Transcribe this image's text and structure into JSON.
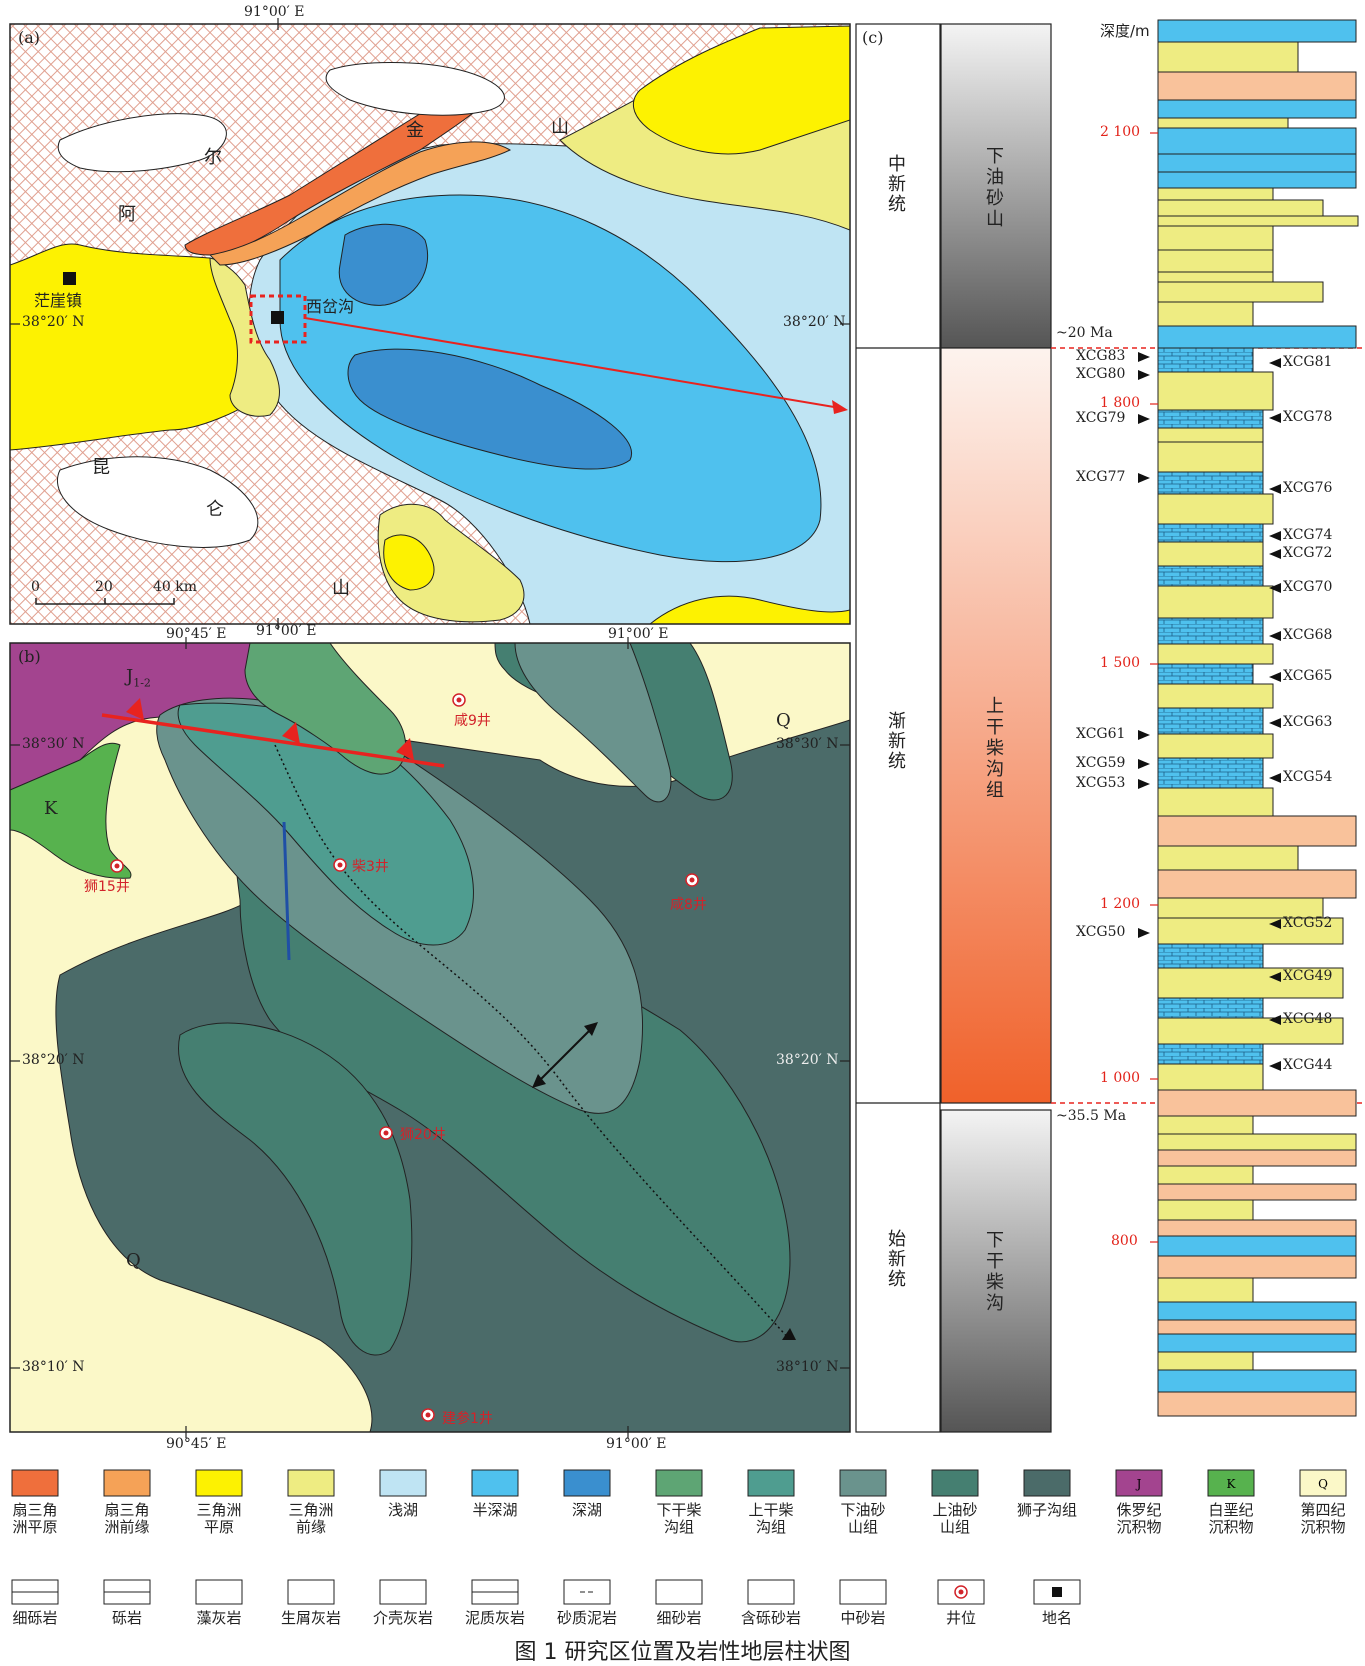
{
  "panel_a": {
    "label": "(a)",
    "top_lon": "91°00′ E",
    "lon_bottom": "91°00′ E",
    "lat_left": "38°20′ N",
    "lat_right": "38°20′ N",
    "places": {
      "town": "茫崖镇",
      "site": "西岔沟"
    },
    "range_north": [
      "阿",
      "尔",
      "金",
      "山"
    ],
    "range_south": [
      "昆",
      "仑",
      "山"
    ],
    "scale": {
      "ticks": [
        "0",
        "20",
        "40 km"
      ]
    }
  },
  "panel_b": {
    "label": "(b)",
    "lon_top": [
      "90°45′ E",
      "91°00′ E"
    ],
    "lon_bottom": [
      "90°45′ E",
      "91°00′ E"
    ],
    "lat_left": [
      "38°30′ N",
      "38°20′ N",
      "38°10′ N"
    ],
    "lat_right": [
      "38°30′ N",
      "38°20′ N",
      "38°10′ N"
    ],
    "units": {
      "J": "J",
      "J_sub": "1-2",
      "K": "K",
      "Q1": "Q",
      "Q2": "Q"
    },
    "wells": [
      "咸9井",
      "狮15井",
      "柴3井",
      "咸8井",
      "狮20井",
      "建参1井"
    ]
  },
  "panel_c": {
    "label": "(c)",
    "depth_header": "深度/m",
    "series": [
      "中新统",
      "渐新统",
      "始新统"
    ],
    "formations": [
      "下油砂山",
      "上干柴沟组",
      "下干柴沟"
    ],
    "ages": [
      "~20 Ma",
      "~35.5 Ma"
    ],
    "depth_ticks": [
      "2 100",
      "1 800",
      "1 500",
      "1 200",
      "1 000",
      "800"
    ],
    "samples_left": [
      "XCG83",
      "XCG80",
      "XCG79",
      "XCG77",
      "XCG61",
      "XCG59",
      "XCG53",
      "XCG50"
    ],
    "samples_right": [
      "XCG81",
      "XCG78",
      "XCG76",
      "XCG74",
      "XCG72",
      "XCG70",
      "XCG68",
      "XCG65",
      "XCG63",
      "XCG54",
      "XCG52",
      "XCG49",
      "XCG48",
      "XCG44"
    ]
  },
  "legend_row1": [
    {
      "label": "扇三角\n洲平原",
      "color": "#ef6f3c"
    },
    {
      "label": "扇三角\n洲前缘",
      "color": "#f5a257"
    },
    {
      "label": "三角洲\n平原",
      "color": "#fdf201"
    },
    {
      "label": "三角洲\n前缘",
      "color": "#eeec82"
    },
    {
      "label": "浅湖",
      "color": "#bfe4f3"
    },
    {
      "label": "半深湖",
      "color": "#4fc1ee"
    },
    {
      "label": "深湖",
      "color": "#3a8fcf"
    },
    {
      "label": "下干柴\n沟组",
      "color": "#5ea574"
    },
    {
      "label": "上干柴\n沟组",
      "color": "#4f9d90"
    },
    {
      "label": "下油砂\n山组",
      "color": "#6a938d"
    },
    {
      "label": "上油砂\n山组",
      "color": "#457f71"
    },
    {
      "label": "狮子沟组",
      "color": "#4b6b69"
    },
    {
      "label": "侏罗纪\n沉积物",
      "color": "#a3448f",
      "code": "J"
    },
    {
      "label": "白垩纪\n沉积物",
      "color": "#57b24e",
      "code": "K"
    },
    {
      "label": "第四纪\n沉积物",
      "color": "#fbf8c8",
      "code": "Q"
    }
  ],
  "legend_row2": [
    "细砾岩",
    "砾岩",
    "藻灰岩",
    "生屑灰岩",
    "介壳灰岩",
    "泥质灰岩",
    "砂质泥岩",
    "细砂岩",
    "含砾砂岩",
    "中砂岩",
    "井位",
    "地名"
  ],
  "caption": "图 1   研究区位置及岩性地层柱状图",
  "colors": {
    "fault": "#e8231f",
    "well": "#d2232a",
    "depth_red": "#e2231a",
    "blue_line": "#1f4fa6"
  }
}
